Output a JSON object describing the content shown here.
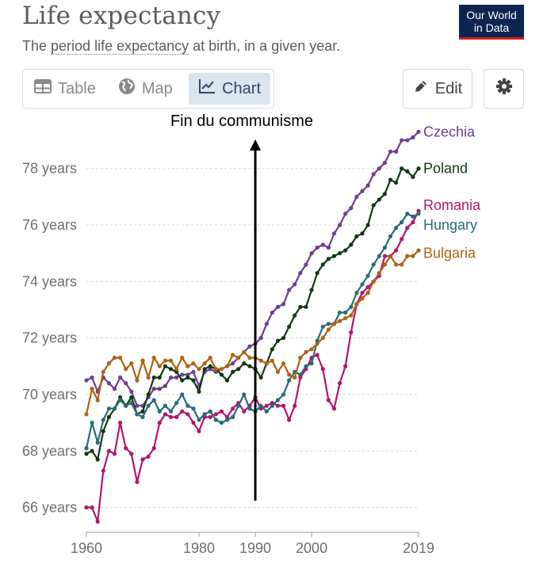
{
  "header": {
    "title": "Life expectancy",
    "subtitle_pre": "The ",
    "subtitle_link": "period life expectancy",
    "subtitle_post": " at birth, in a given year.",
    "logo_line1": "Our World",
    "logo_line2": "in Data"
  },
  "tabs": [
    {
      "label": "Table",
      "icon": "table-icon"
    },
    {
      "label": "Map",
      "icon": "globe-icon"
    },
    {
      "label": "Chart",
      "icon": "line-chart-icon",
      "active": true
    }
  ],
  "toolbar": {
    "edit_label": "Edit",
    "settings_icon": "gear-icon"
  },
  "annotation": {
    "text": "Fin du communisme",
    "year": 1990
  },
  "chart_data": {
    "type": "line",
    "title": "Life expectancy",
    "xlabel": "",
    "ylabel": "",
    "y_unit": " years",
    "xlim": [
      1960,
      2019
    ],
    "ylim": [
      65.4,
      79.9
    ],
    "x_ticks": [
      1960,
      1980,
      1990,
      2000,
      2019
    ],
    "y_ticks": [
      66,
      68,
      70,
      72,
      74,
      76,
      78
    ],
    "grid": true,
    "legend": "right, at line ends",
    "x": [
      1960,
      1961,
      1962,
      1963,
      1964,
      1965,
      1966,
      1967,
      1968,
      1969,
      1970,
      1971,
      1972,
      1973,
      1974,
      1975,
      1976,
      1977,
      1978,
      1979,
      1980,
      1981,
      1982,
      1983,
      1984,
      1985,
      1986,
      1987,
      1988,
      1989,
      1990,
      1991,
      1992,
      1993,
      1994,
      1995,
      1996,
      1997,
      1998,
      1999,
      2000,
      2001,
      2002,
      2003,
      2004,
      2005,
      2006,
      2007,
      2008,
      2009,
      2010,
      2011,
      2012,
      2013,
      2014,
      2015,
      2016,
      2017,
      2018,
      2019
    ],
    "series": [
      {
        "name": "Czechia",
        "color": "#6d3e91",
        "values": [
          70.5,
          70.6,
          70.1,
          70.6,
          70.4,
          70.2,
          70.6,
          70.4,
          70.1,
          69.6,
          69.6,
          69.9,
          70.2,
          70.2,
          70.3,
          70.6,
          70.6,
          70.7,
          70.7,
          70.8,
          70.3,
          70.8,
          70.9,
          70.8,
          70.9,
          71.0,
          71.1,
          71.3,
          71.5,
          71.7,
          71.8,
          72.0,
          72.5,
          72.9,
          73.1,
          73.2,
          73.7,
          73.9,
          74.3,
          74.6,
          75.0,
          75.2,
          75.3,
          75.2,
          75.7,
          76.0,
          76.4,
          76.6,
          77.0,
          77.2,
          77.4,
          77.8,
          78.0,
          78.2,
          78.6,
          78.6,
          79.0,
          79.0,
          79.1,
          79.3
        ]
      },
      {
        "name": "Poland",
        "color": "#133814",
        "values": [
          67.9,
          68.0,
          67.7,
          68.7,
          69.2,
          69.5,
          69.9,
          69.6,
          69.9,
          69.3,
          69.4,
          70.0,
          70.6,
          70.6,
          71.0,
          70.9,
          70.8,
          70.5,
          70.6,
          70.5,
          70.1,
          70.9,
          71.0,
          70.9,
          70.7,
          70.5,
          70.8,
          70.9,
          71.1,
          71.0,
          70.9,
          70.6,
          71.1,
          71.6,
          71.9,
          72.0,
          72.4,
          72.8,
          73.1,
          73.1,
          73.7,
          74.3,
          74.6,
          74.8,
          74.9,
          75.0,
          75.1,
          75.3,
          75.6,
          75.7,
          76.0,
          76.7,
          76.9,
          77.1,
          77.6,
          77.5,
          78.0,
          77.9,
          77.7,
          78.0
        ]
      },
      {
        "name": "Romania",
        "color": "#b1166f",
        "values": [
          66.0,
          66.0,
          65.5,
          67.3,
          68.0,
          67.9,
          69.0,
          68.1,
          67.9,
          66.9,
          67.7,
          67.8,
          68.1,
          69.0,
          69.3,
          69.2,
          69.2,
          69.4,
          69.3,
          69.0,
          68.7,
          69.2,
          69.2,
          69.3,
          69.4,
          69.2,
          69.5,
          69.7,
          69.4,
          69.6,
          69.9,
          69.5,
          69.6,
          69.7,
          69.6,
          69.6,
          69.1,
          69.6,
          70.6,
          70.9,
          71.3,
          71.4,
          70.9,
          69.8,
          69.5,
          70.4,
          71.0,
          72.2,
          73.2,
          73.6,
          73.8,
          74.0,
          74.2,
          74.9,
          74.9,
          75.1,
          75.5,
          75.9,
          76.1,
          76.5
        ]
      },
      {
        "name": "Hungary",
        "color": "#286b77",
        "values": [
          68.1,
          69.0,
          68.3,
          69.1,
          69.5,
          69.5,
          69.8,
          69.6,
          69.7,
          69.3,
          69.2,
          69.6,
          69.8,
          69.4,
          69.6,
          69.4,
          69.7,
          70.0,
          69.6,
          69.5,
          69.1,
          69.3,
          69.4,
          69.1,
          69.0,
          69.1,
          69.2,
          69.6,
          70.0,
          69.5,
          69.4,
          69.6,
          69.4,
          69.6,
          69.8,
          70.0,
          70.5,
          70.8,
          70.7,
          71.0,
          71.1,
          71.9,
          72.4,
          72.5,
          72.5,
          72.9,
          72.9,
          73.1,
          73.6,
          73.9,
          74.2,
          74.6,
          74.9,
          75.2,
          75.6,
          75.9,
          76.1,
          76.4,
          76.3,
          76.4
        ]
      },
      {
        "name": "Bulgaria",
        "color": "#b16214",
        "values": [
          69.3,
          70.2,
          69.8,
          70.8,
          71.1,
          71.3,
          71.3,
          70.9,
          71.1,
          70.5,
          71.2,
          70.6,
          71.3,
          71.0,
          71.2,
          71.2,
          70.9,
          71.3,
          71.0,
          71.1,
          70.9,
          71.1,
          71.3,
          70.9,
          70.9,
          71.0,
          71.4,
          71.3,
          71.5,
          71.3,
          71.3,
          71.2,
          71.1,
          71.2,
          70.8,
          71.1,
          70.7,
          70.6,
          71.3,
          71.5,
          71.6,
          71.8,
          72.0,
          72.3,
          72.5,
          72.6,
          72.7,
          72.8,
          73.2,
          73.4,
          73.6,
          74.0,
          74.3,
          74.6,
          74.9,
          74.6,
          74.6,
          74.9,
          74.9,
          75.1
        ]
      }
    ]
  }
}
